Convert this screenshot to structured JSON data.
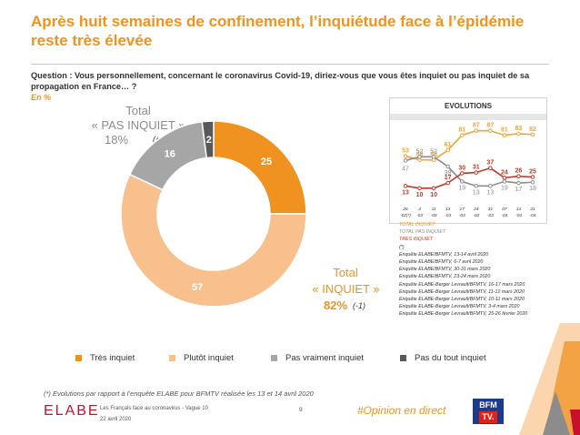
{
  "title": "Après huit semaines de confinement, l’inquiétude face à l’épidémie reste très élevée",
  "question": "Question : Vous personnellement, concernant le coronavirus Covid-19, diriez-vous que vous êtes inquiet ou pas inquiet de sa propagation en France… ?",
  "unit_note": "En %",
  "total_pas_inquiet": {
    "line1": "Total",
    "line2": "« PAS INQUIET »",
    "pct": "18%",
    "delta": "(+1)*"
  },
  "total_inquiet": {
    "line1": "Total",
    "line2": "« INQUIET »",
    "pct": "82%",
    "delta": "(-1)"
  },
  "evolutions_title": "EVOLUTIONS",
  "evolutions_notes": {
    "total_inquiet": "TOTAL INQUIET",
    "total_pas_inquiet": "TOTAL PAS INQUIET",
    "tres_inquiet": "TRES INQUIET",
    "star": "(*)",
    "sources": [
      "Enquête ELABE/BFMTV, 13-14 avril 2020",
      "Enquête ELABE/BFMTV, 6-7 avril 2020",
      "Enquête ELABE/BFMTV, 30-31 mars 2020",
      "Enquête ELABE/BFMTV, 23-24 mars 2020",
      "Enquête ELABE-Berger Levrault/BFMTV, 16-17 mars 2020",
      "Enquête ELABE-Berger Levrault/BFMTV, 11-12 mars 2020",
      "Enquête ELABE-Berger Levrault/BFMTV, 10-11 mars 2020",
      "Enquête ELABE-Berger Levrault/BFMTV, 3-4 mars 2020",
      "Enquête ELABE-Berger Levrault/BFMTV, 25-26 février 2020"
    ]
  },
  "footnote": "(*) Evolutions par rapport à l’enquête ELABE pour BFMTV réalisée les 13 et 14 avril 2020",
  "footer": {
    "logo": "ELABE",
    "study": "Les Français face au coronavirus - Vague 10",
    "date": "22 avril 2020",
    "page": "9",
    "hashtag": "#Opinion en direct",
    "bfm_line1": "BFM",
    "bfm_line2": "TV."
  },
  "colors": {
    "tres_inquiet": "#f0921f",
    "plutot_inquiet": "#f8c08c",
    "pas_vraiment_inquiet": "#a6a6a6",
    "pas_du_tout_inquiet": "#595959",
    "evo_total_inquiet": "#f0a33a",
    "evo_total_pas_inquiet": "#8c8c8c",
    "evo_tres_inquiet": "#c0392b"
  },
  "chart_data": [
    {
      "type": "pie",
      "categories": [
        "Très inquiet",
        "Plutôt inquiet",
        "Pas vraiment inquiet",
        "Pas du tout inquiet"
      ],
      "values": [
        25,
        57,
        16,
        2
      ],
      "legend_position": "bottom"
    },
    {
      "type": "line",
      "title": "EVOLUTIONS",
      "x": [
        "26 -02(*)",
        "4 -03",
        "11 -03",
        "13 -03",
        "17 -03",
        "24 -03",
        "31 -03",
        "07 -04",
        "14 -04",
        "21 -04"
      ],
      "series": [
        {
          "name": "TOTAL INQUIET",
          "values": [
            53,
            48,
            48,
            61,
            81,
            87,
            87,
            81,
            83,
            82
          ]
        },
        {
          "name": "TOTAL PAS INQUIET",
          "values": [
            47,
            52,
            52,
            39,
            19,
            13,
            13,
            19,
            17,
            18
          ]
        },
        {
          "name": "TRES INQUIET",
          "values": [
            13,
            10,
            10,
            17,
            30,
            31,
            37,
            24,
            26,
            25
          ]
        }
      ],
      "ylim": [
        0,
        100
      ]
    }
  ]
}
